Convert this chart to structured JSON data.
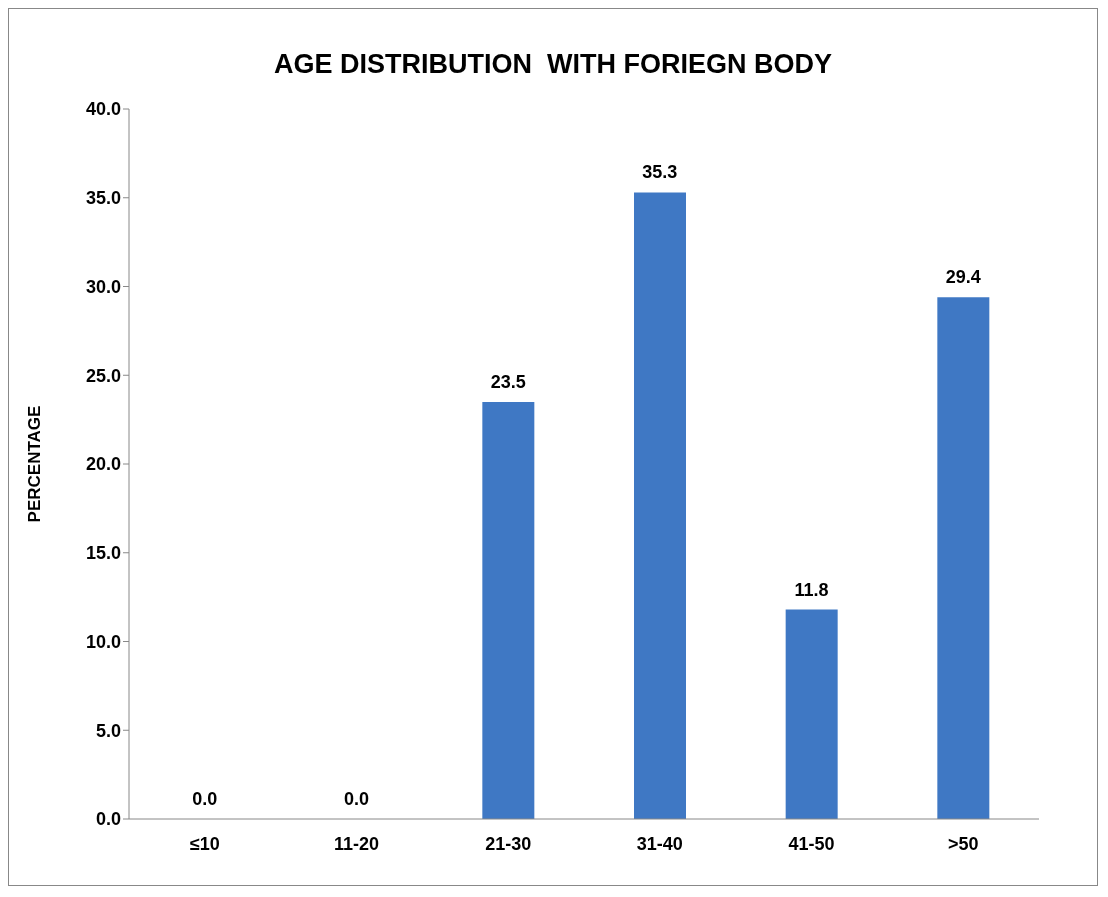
{
  "chart_data": {
    "type": "bar",
    "title": "AGE DISTRIBUTION  WITH FORIEGN BODY",
    "ylabel": "PERCENTAGE",
    "categories": [
      "≤10",
      "11-20",
      "21-30",
      "31-40",
      "41-50",
      ">50"
    ],
    "values": [
      0,
      0,
      23.5,
      35.3,
      11.8,
      29.4
    ],
    "value_labels": [
      "0.0",
      "0.0",
      "23.5",
      "35.3",
      "11.8",
      "29.4"
    ],
    "color": "#3f78c4",
    "ylim": [
      0,
      40
    ],
    "yticks": [
      {
        "value": 0,
        "label": "0.0"
      },
      {
        "value": 5,
        "label": "5.0"
      },
      {
        "value": 10,
        "label": "10.0"
      },
      {
        "value": 15,
        "label": "15.0"
      },
      {
        "value": 20,
        "label": "20.0"
      },
      {
        "value": 25,
        "label": "25.0"
      },
      {
        "value": 30,
        "label": "30.0"
      },
      {
        "value": 35,
        "label": "35.0"
      },
      {
        "value": 40,
        "label": "40.0"
      }
    ],
    "grid": false,
    "legend": false
  }
}
